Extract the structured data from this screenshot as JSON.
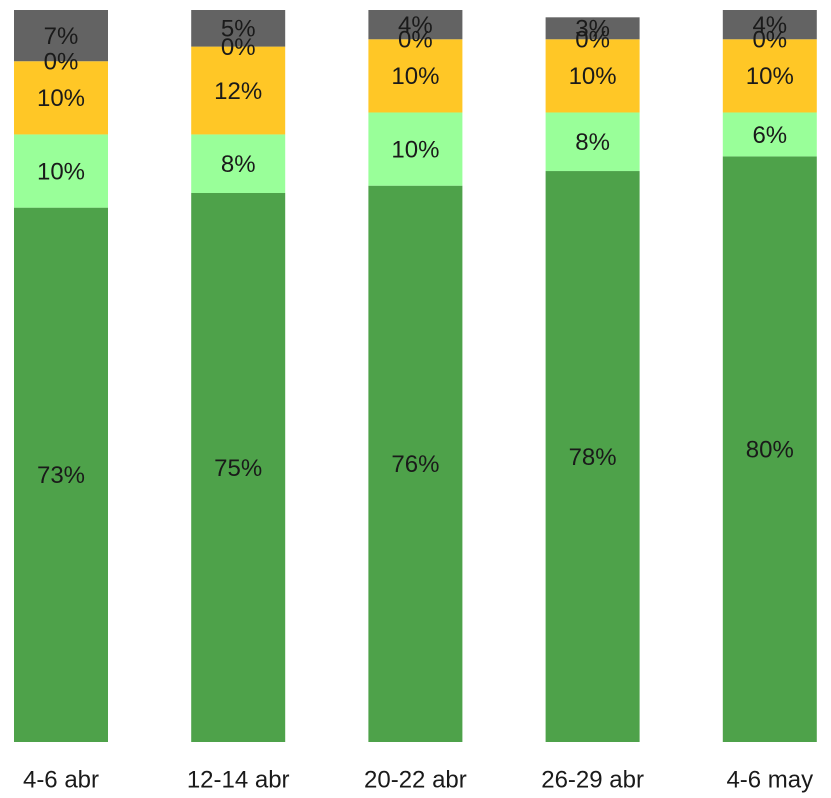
{
  "chart_data": {
    "type": "stacked_bar",
    "categories": [
      "4-6 abr",
      "12-14 abr",
      "20-22 abr",
      "26-29 abr",
      "4-6 may"
    ],
    "ylim": [
      0,
      100
    ],
    "series": [
      {
        "color": "#4ea24a",
        "values": [
          73,
          75,
          76,
          78,
          80
        ],
        "value_labels": [
          "73%",
          "75%",
          "76%",
          "78%",
          "80%"
        ]
      },
      {
        "color": "#99ff99",
        "values": [
          10,
          8,
          10,
          8,
          6
        ],
        "value_labels": [
          "10%",
          "8%",
          "10%",
          "8%",
          "6%"
        ]
      },
      {
        "color": "#ffc726",
        "values": [
          10,
          12,
          10,
          10,
          10
        ],
        "value_labels": [
          "10%",
          "12%",
          "10%",
          "10%",
          "10%"
        ]
      },
      {
        "color": "#ff0000",
        "values": [
          0,
          0,
          0,
          0,
          0
        ],
        "value_labels": [
          "0%",
          "0%",
          "0%",
          "0%",
          "0%"
        ]
      },
      {
        "color": "#636363",
        "values": [
          7,
          5,
          4,
          3,
          4
        ],
        "value_labels": [
          "7%",
          "5%",
          "4%",
          "3%",
          "4%"
        ]
      }
    ]
  }
}
